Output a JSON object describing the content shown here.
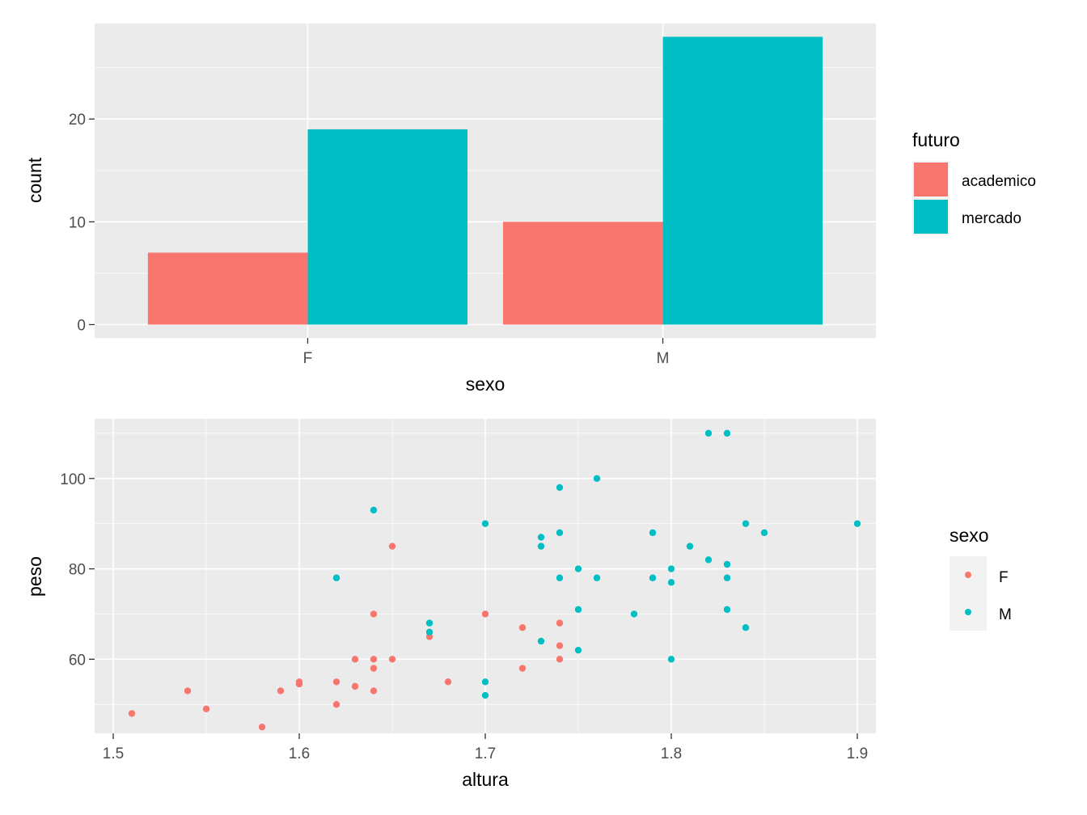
{
  "chart_data": [
    {
      "type": "bar",
      "position": "dodge",
      "xlabel": "sexo",
      "ylabel": "count",
      "categories": [
        "F",
        "M"
      ],
      "ylim": [
        -1.3,
        29.3
      ],
      "yticks": [
        0,
        10,
        20
      ],
      "grid": true,
      "legend": {
        "title": "futuro",
        "placement": "right",
        "entries": [
          "academico",
          "mercado"
        ]
      },
      "colors": {
        "academico": "#F8766D",
        "mercado": "#00BFC4"
      },
      "series": [
        {
          "name": "academico",
          "values": [
            7,
            10
          ]
        },
        {
          "name": "mercado",
          "values": [
            19,
            28
          ]
        }
      ]
    },
    {
      "type": "scatter",
      "xlabel": "altura",
      "ylabel": "peso",
      "xlim": [
        1.49,
        1.91
      ],
      "ylim": [
        43.6,
        113.2
      ],
      "xticks": [
        1.5,
        1.6,
        1.7,
        1.8,
        1.9
      ],
      "xtick_labels": [
        "1.5",
        "1.6",
        "1.7",
        "1.8",
        "1.9"
      ],
      "yticks": [
        60,
        80,
        100
      ],
      "grid": true,
      "legend": {
        "title": "sexo",
        "placement": "right",
        "entries": [
          "F",
          "M"
        ]
      },
      "colors": {
        "F": "#F8766D",
        "M": "#00BFC4"
      },
      "series": [
        {
          "name": "F",
          "points": [
            [
              1.51,
              48
            ],
            [
              1.54,
              53
            ],
            [
              1.55,
              49
            ],
            [
              1.58,
              45
            ],
            [
              1.59,
              53
            ],
            [
              1.6,
              54.5
            ],
            [
              1.6,
              55
            ],
            [
              1.62,
              55
            ],
            [
              1.62,
              50
            ],
            [
              1.63,
              60
            ],
            [
              1.63,
              54
            ],
            [
              1.64,
              70
            ],
            [
              1.64,
              60
            ],
            [
              1.64,
              58
            ],
            [
              1.64,
              53
            ],
            [
              1.65,
              85
            ],
            [
              1.65,
              60
            ],
            [
              1.67,
              65
            ],
            [
              1.68,
              55
            ],
            [
              1.7,
              70
            ],
            [
              1.72,
              67
            ],
            [
              1.72,
              58
            ],
            [
              1.74,
              68
            ],
            [
              1.74,
              63
            ],
            [
              1.74,
              60
            ]
          ]
        },
        {
          "name": "M",
          "points": [
            [
              1.62,
              78
            ],
            [
              1.64,
              93
            ],
            [
              1.67,
              68
            ],
            [
              1.67,
              66
            ],
            [
              1.7,
              90
            ],
            [
              1.7,
              55
            ],
            [
              1.7,
              52
            ],
            [
              1.73,
              87
            ],
            [
              1.73,
              85
            ],
            [
              1.73,
              64
            ],
            [
              1.74,
              98
            ],
            [
              1.74,
              88
            ],
            [
              1.74,
              78
            ],
            [
              1.75,
              80
            ],
            [
              1.75,
              71
            ],
            [
              1.75,
              62
            ],
            [
              1.76,
              100
            ],
            [
              1.76,
              78
            ],
            [
              1.78,
              70
            ],
            [
              1.79,
              88
            ],
            [
              1.79,
              78
            ],
            [
              1.8,
              80
            ],
            [
              1.8,
              77
            ],
            [
              1.8,
              60
            ],
            [
              1.81,
              85
            ],
            [
              1.82,
              110
            ],
            [
              1.82,
              82
            ],
            [
              1.83,
              110
            ],
            [
              1.83,
              81
            ],
            [
              1.83,
              78
            ],
            [
              1.83,
              71
            ],
            [
              1.84,
              90
            ],
            [
              1.84,
              67
            ],
            [
              1.85,
              88
            ],
            [
              1.9,
              90
            ]
          ]
        }
      ]
    }
  ]
}
